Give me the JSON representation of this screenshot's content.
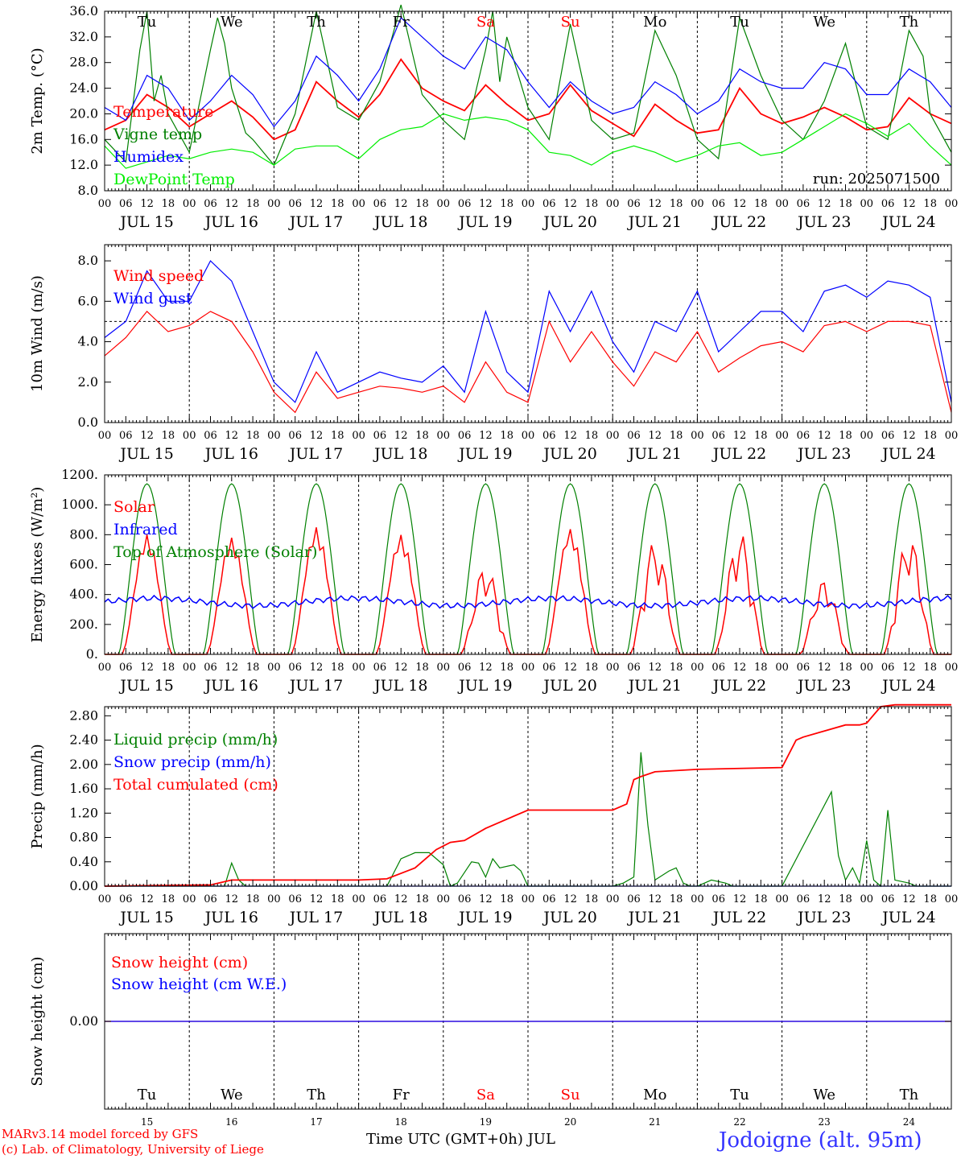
{
  "chart_data": [
    {
      "id": "temp",
      "type": "line",
      "ylabel": "2m Temp. (°C)",
      "ylim": [
        8,
        36
      ],
      "yticks": [
        "8.0",
        "12.0",
        "16.0",
        "20.0",
        "24.0",
        "28.0",
        "32.0",
        "36.0"
      ],
      "ytick_values": [
        8,
        12,
        16,
        20,
        24,
        28,
        32,
        36
      ],
      "legend": [
        "Temperature",
        "Vigne temp",
        "Humidex",
        "DewPoint Temp"
      ],
      "annotation": "run: 2025071500",
      "series": [
        {
          "name": "Temperature",
          "color": "#ff0000",
          "x": [
            0,
            6,
            12,
            18,
            24,
            30,
            36,
            42,
            48,
            54,
            60,
            66,
            72,
            78,
            84,
            90,
            96,
            102,
            108,
            114,
            120,
            126,
            132,
            138,
            144,
            150,
            156,
            162,
            168,
            174,
            180,
            186,
            192,
            198,
            204,
            210,
            216,
            222,
            228,
            234,
            240
          ],
          "values": [
            17.5,
            19,
            23,
            21,
            18,
            20,
            22,
            19.5,
            16,
            17.5,
            25,
            22,
            19.5,
            23,
            28.5,
            24,
            22,
            20.5,
            24.5,
            21.5,
            19,
            20,
            24.5,
            20.5,
            18.5,
            16.5,
            21.5,
            19,
            17,
            17.5,
            24,
            20,
            18.5,
            19.5,
            21,
            19.5,
            17.5,
            18,
            22.5,
            20,
            18.5
          ]
        },
        {
          "name": "Vigne temp",
          "color": "#008000",
          "x": [
            0,
            6,
            10,
            12,
            14,
            16,
            18,
            24,
            30,
            32,
            34,
            36,
            40,
            42,
            48,
            54,
            60,
            66,
            72,
            78,
            84,
            90,
            96,
            102,
            108,
            110,
            112,
            114,
            120,
            126,
            132,
            138,
            144,
            150,
            156,
            162,
            168,
            174,
            180,
            186,
            192,
            198,
            204,
            210,
            216,
            222,
            228,
            232,
            234,
            240
          ],
          "values": [
            16,
            12.5,
            30,
            36,
            22,
            26,
            20,
            14,
            30,
            35,
            31,
            24,
            17,
            16,
            12,
            20,
            36,
            21,
            19,
            25,
            37,
            23,
            19,
            16,
            30,
            36,
            25,
            32,
            21,
            16,
            34,
            19,
            16,
            17,
            33,
            26,
            16,
            13,
            35,
            26,
            19,
            16,
            22,
            31,
            18,
            16,
            33,
            29,
            20,
            14
          ]
        },
        {
          "name": "Humidex",
          "color": "#0000ff",
          "x": [
            0,
            6,
            12,
            18,
            24,
            30,
            36,
            42,
            48,
            54,
            60,
            66,
            72,
            78,
            84,
            90,
            96,
            102,
            108,
            114,
            120,
            126,
            132,
            138,
            144,
            150,
            156,
            162,
            168,
            174,
            180,
            186,
            192,
            198,
            204,
            210,
            216,
            222,
            228,
            234,
            240
          ],
          "values": [
            21,
            19,
            26,
            24,
            19,
            22,
            26,
            23,
            18,
            22,
            29,
            26,
            22,
            27,
            35,
            32,
            29,
            27,
            32,
            30,
            25,
            21,
            25,
            22,
            20,
            21,
            25,
            23,
            20,
            22,
            27,
            25,
            24,
            24,
            28,
            27,
            23,
            23,
            27,
            25,
            21
          ]
        },
        {
          "name": "DewPoint Temp",
          "color": "#00ee00",
          "x": [
            0,
            6,
            12,
            18,
            24,
            30,
            36,
            42,
            48,
            54,
            60,
            66,
            72,
            78,
            84,
            90,
            96,
            102,
            108,
            114,
            120,
            126,
            132,
            138,
            144,
            150,
            156,
            162,
            168,
            174,
            180,
            186,
            192,
            198,
            204,
            210,
            216,
            222,
            228,
            234,
            240
          ],
          "values": [
            15,
            11.5,
            12.5,
            13.5,
            13,
            14,
            14.5,
            14,
            12,
            14.5,
            15,
            15,
            13,
            16,
            17.5,
            18,
            20,
            19,
            19.5,
            19,
            17.5,
            14,
            13.5,
            12,
            14,
            15,
            14,
            12.5,
            13.5,
            15,
            15.5,
            13.5,
            14,
            16,
            18,
            20,
            18.5,
            16.5,
            18.5,
            15,
            12
          ]
        }
      ]
    },
    {
      "id": "wind",
      "type": "line",
      "ylabel": "10m Wind (m/s)",
      "ylim": [
        0,
        8.8
      ],
      "yticks": [
        "0.0",
        "2.0",
        "4.0",
        "6.0",
        "8.0"
      ],
      "ytick_values": [
        0,
        2,
        4,
        6,
        8
      ],
      "reference_line": 5,
      "legend": [
        "Wind speed",
        "Wind gust"
      ],
      "series": [
        {
          "name": "Wind speed",
          "color": "#ff0000",
          "x": [
            0,
            6,
            12,
            18,
            24,
            30,
            36,
            42,
            48,
            54,
            60,
            66,
            72,
            78,
            84,
            90,
            96,
            102,
            108,
            114,
            120,
            126,
            132,
            138,
            144,
            150,
            156,
            162,
            168,
            174,
            180,
            186,
            192,
            198,
            204,
            210,
            216,
            222,
            228,
            234,
            240
          ],
          "values": [
            3.3,
            4.2,
            5.5,
            4.5,
            4.8,
            5.5,
            5,
            3.5,
            1.5,
            0.5,
            2.5,
            1.2,
            1.5,
            1.8,
            1.7,
            1.5,
            1.8,
            1,
            3,
            1.5,
            1,
            5,
            3,
            4.5,
            3,
            1.8,
            3.5,
            3,
            4.5,
            2.5,
            3.2,
            3.8,
            4,
            3.5,
            4.8,
            5,
            4.5,
            5,
            5,
            4.8,
            0.5
          ]
        },
        {
          "name": "Wind gust",
          "color": "#0000ff",
          "x": [
            0,
            6,
            12,
            18,
            24,
            30,
            36,
            42,
            48,
            54,
            60,
            66,
            72,
            78,
            84,
            90,
            96,
            102,
            108,
            114,
            120,
            126,
            132,
            138,
            144,
            150,
            156,
            162,
            168,
            174,
            180,
            186,
            192,
            198,
            204,
            210,
            216,
            222,
            228,
            234,
            240
          ],
          "values": [
            4.2,
            5,
            7.5,
            6,
            6,
            8,
            7,
            4.5,
            2,
            1,
            3.5,
            1.5,
            2,
            2.5,
            2.2,
            2,
            2.8,
            1.5,
            5.5,
            2.5,
            1.5,
            6.5,
            4.5,
            6.5,
            4,
            2.5,
            5,
            4.5,
            6.5,
            3.5,
            4.5,
            5.5,
            5.5,
            4.5,
            6.5,
            6.8,
            6.2,
            7,
            6.8,
            6.2,
            1
          ]
        }
      ]
    },
    {
      "id": "energy",
      "type": "line",
      "ylabel": "Energy fluxes (W/m²)",
      "ylim": [
        0,
        1200
      ],
      "yticks": [
        "0.",
        "200.",
        "400.",
        "600.",
        "800.",
        "1000.",
        "1200."
      ],
      "ytick_values": [
        0,
        200,
        400,
        600,
        800,
        1000,
        1200
      ],
      "legend": [
        "Solar",
        "Infrared",
        "Top of Atmosphere (Solar)"
      ],
      "toa_peak": 1140,
      "toa_day_start_h": 4,
      "toa_day_end_h": 20,
      "solar_daily_peak": [
        800,
        780,
        850,
        800,
        600,
        840,
        760,
        820,
        500,
        800
      ],
      "infrared_mean": 350,
      "series": [
        {
          "name": "Solar",
          "color": "#ff0000"
        },
        {
          "name": "Infrared",
          "color": "#0000ff"
        },
        {
          "name": "Top of Atmosphere (Solar)",
          "color": "#008000"
        }
      ]
    },
    {
      "id": "precip",
      "type": "line",
      "ylabel": "Precip (mm/h)",
      "ylim": [
        0,
        2.95
      ],
      "yticks": [
        "0.00",
        "0.40",
        "0.80",
        "1.20",
        "1.60",
        "2.00",
        "2.40",
        "2.80"
      ],
      "ytick_values": [
        0,
        0.4,
        0.8,
        1.2,
        1.6,
        2.0,
        2.4,
        2.8
      ],
      "legend": [
        "Liquid precip (mm/h)",
        "Snow precip (mm/h)",
        "Total cumulated (cm)"
      ],
      "series": [
        {
          "name": "Liquid precip (mm/h)",
          "color": "#008000",
          "x": [
            0,
            34,
            36,
            38,
            40,
            80,
            84,
            88,
            92,
            96,
            98,
            100,
            104,
            106,
            108,
            110,
            112,
            116,
            118,
            120,
            144,
            147,
            150,
            152,
            154,
            156,
            160,
            162,
            164,
            166,
            168,
            170,
            172,
            176,
            178,
            192,
            206,
            208,
            210,
            212,
            214,
            216,
            218,
            220,
            222,
            224,
            228,
            230,
            232,
            234,
            240
          ],
          "values": [
            0,
            0,
            0.38,
            0.1,
            0,
            0,
            0.45,
            0.55,
            0.55,
            0.35,
            0,
            0.05,
            0.4,
            0.38,
            0.15,
            0.45,
            0.3,
            0.35,
            0.25,
            0,
            0,
            0.05,
            0.15,
            2.2,
            1.0,
            0.1,
            0.25,
            0.3,
            0.05,
            0,
            0,
            0.05,
            0.1,
            0.05,
            0,
            0,
            1.55,
            0.5,
            0.1,
            0.3,
            0.05,
            0.75,
            0.1,
            0,
            1.25,
            0.1,
            0.05,
            0,
            0,
            0,
            0
          ]
        },
        {
          "name": "Snow precip (mm/h)",
          "color": "#0000ff",
          "x": [
            0,
            240
          ],
          "values": [
            0,
            0
          ]
        },
        {
          "name": "Total cumulated (cm)",
          "color": "#ff0000",
          "x": [
            0,
            30,
            36,
            72,
            80,
            88,
            94,
            98,
            102,
            108,
            114,
            120,
            144,
            148,
            150,
            152,
            156,
            168,
            192,
            196,
            198,
            204,
            210,
            214,
            216,
            220,
            224,
            240
          ],
          "values": [
            0,
            0.02,
            0.1,
            0.1,
            0.12,
            0.3,
            0.6,
            0.72,
            0.75,
            0.95,
            1.1,
            1.25,
            1.25,
            1.35,
            1.75,
            1.8,
            1.88,
            1.92,
            1.95,
            2.4,
            2.45,
            2.55,
            2.65,
            2.65,
            2.68,
            2.95,
            2.98,
            2.98
          ]
        }
      ]
    },
    {
      "id": "snow",
      "type": "line",
      "ylabel": "Snow height (cm)",
      "ylim": [
        -1,
        1
      ],
      "yticks": [
        "0.00"
      ],
      "ytick_values": [
        0
      ],
      "legend": [
        "Snow height (cm)",
        "Snow height (cm W.E.)"
      ],
      "series": [
        {
          "name": "Snow height (cm)",
          "color": "#ff0000",
          "x": [
            0,
            240
          ],
          "values": [
            0,
            0
          ]
        },
        {
          "name": "Snow height (cm W.E.)",
          "color": "#0000ff",
          "x": [
            0,
            240
          ],
          "values": [
            0,
            0
          ]
        }
      ]
    }
  ],
  "x_axis": {
    "hour_ticks": [
      "00",
      "06",
      "12",
      "18"
    ],
    "end_tick": "00",
    "date_labels": [
      "JUL 15",
      "JUL 16",
      "JUL 17",
      "JUL 18",
      "JUL 19",
      "JUL 20",
      "JUL 21",
      "JUL 22",
      "JUL 23",
      "JUL 24"
    ],
    "day_names": [
      "Tu",
      "We",
      "Th",
      "Fr",
      "Sa",
      "Su",
      "Mo",
      "Tu",
      "We",
      "Th"
    ],
    "day_name_colors": [
      "#000000",
      "#000000",
      "#000000",
      "#000000",
      "#ff0000",
      "#ff0000",
      "#000000",
      "#000000",
      "#000000",
      "#000000"
    ],
    "day_numbers": [
      "15",
      "16",
      "17",
      "18",
      "19",
      "20",
      "21",
      "22",
      "23",
      "24"
    ],
    "xlabel": "Time UTC (GMT+0h) JUL"
  },
  "footer": {
    "credit_line1": "MARv3.14 model forced by GFS",
    "credit_line2": "(c) Lab. of Climatology, University of Liege",
    "credit_color": "#ff0000",
    "location": "Jodoigne (alt. 95m)",
    "location_color": "#3333ff"
  }
}
